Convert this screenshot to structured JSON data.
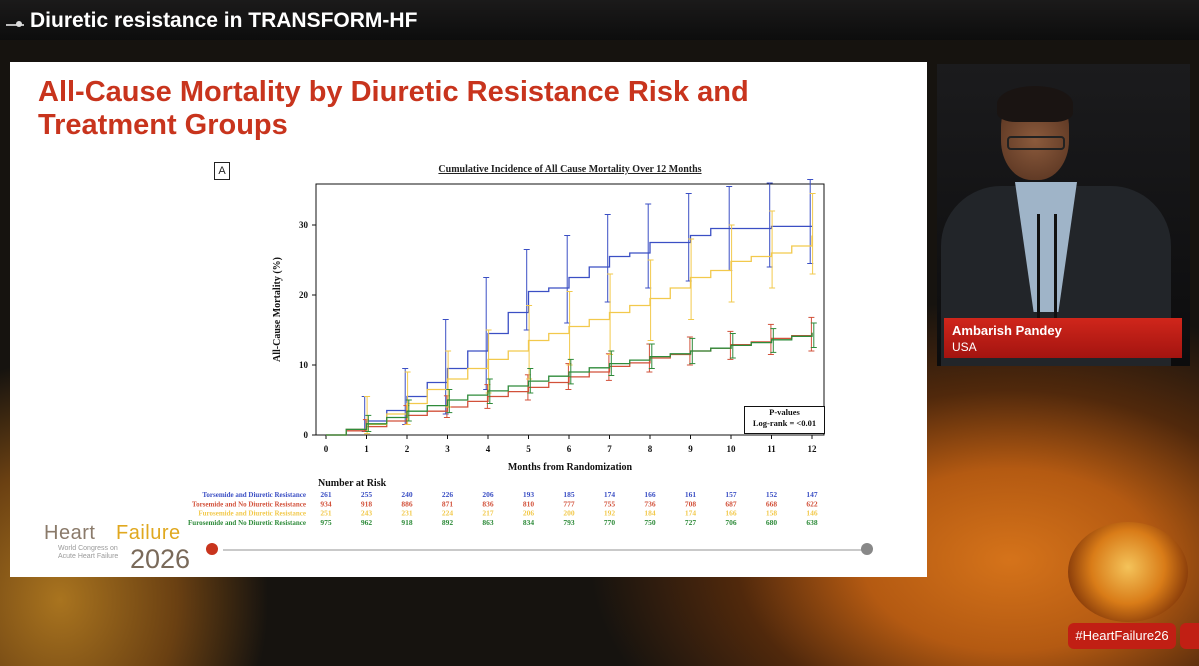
{
  "broadcast": {
    "header_title": "Diuretic resistance in TRANSFORM-HF",
    "speaker_name": "Ambarish Pandey",
    "speaker_country": "USA",
    "hashtag": "#HeartFailure26"
  },
  "slide": {
    "title": "All-Cause Mortality by Diuretic Resistance Risk and Treatment Groups",
    "panel_letter": "A",
    "logo_word1": "Heart",
    "logo_word2": "Failure",
    "logo_sub1": "World Congress on",
    "logo_sub2": "Acute Heart Failure",
    "logo_year": "2026"
  },
  "chart_data": {
    "type": "line",
    "title": "Cumulative Incidence of All Cause Mortality Over 12 Months",
    "xlabel": "Months from Randomization",
    "ylabel": "All-Cause Mortality (%)",
    "xlim": [
      0,
      12
    ],
    "ylim": [
      0,
      35
    ],
    "x_ticks": [
      0,
      1,
      2,
      3,
      4,
      5,
      6,
      7,
      8,
      9,
      10,
      11,
      12
    ],
    "y_ticks": [
      0,
      10,
      20,
      30
    ],
    "pvalue_title": "P-values",
    "pvalue_text": "Log-rank = <0.01",
    "series": [
      {
        "name": "Torsemide and Diuretic Resistance",
        "color": "#3b4fc4",
        "x": [
          0,
          0.5,
          1,
          1.5,
          2,
          2.5,
          3,
          3.5,
          4,
          4.5,
          5,
          5.5,
          6,
          6.5,
          7,
          7.5,
          8,
          8.5,
          9,
          9.5,
          10,
          10.5,
          11,
          11.5,
          12
        ],
        "y": [
          0,
          0.8,
          2,
          3.5,
          5.5,
          7.5,
          9.5,
          12,
          14.5,
          17.5,
          20.5,
          21,
          22.5,
          24,
          25.5,
          26,
          27.5,
          27.5,
          28.5,
          29.5,
          29.5,
          29.5,
          29.8,
          29.8,
          29.8
        ],
        "err_x": [
          1,
          2,
          3,
          4,
          5,
          6,
          7,
          8,
          9,
          10,
          11,
          12
        ],
        "err_low": [
          0.5,
          1.5,
          3,
          6.5,
          15,
          16,
          19,
          21,
          22,
          23.5,
          24,
          24.5
        ],
        "err_high": [
          5.5,
          9.5,
          16.5,
          22.5,
          26.5,
          28.5,
          31.5,
          33,
          34.5,
          35.5,
          36,
          36.5
        ],
        "at_risk": [
          261,
          255,
          240,
          226,
          206,
          193,
          185,
          174,
          166,
          161,
          157,
          152,
          147
        ]
      },
      {
        "name": "Torsemide and No Diuretic Resistance",
        "color": "#d2513a",
        "x": [
          0,
          0.5,
          1,
          1.5,
          2,
          2.5,
          3,
          3.5,
          4,
          4.5,
          5,
          5.5,
          6,
          6.5,
          7,
          7.5,
          8,
          8.5,
          9,
          9.5,
          10,
          10.5,
          11,
          11.5,
          12
        ],
        "y": [
          0,
          0.6,
          1.2,
          2,
          2.8,
          3.4,
          4,
          4.8,
          5.5,
          6.2,
          6.8,
          7.5,
          8.3,
          9,
          9.8,
          10.3,
          11,
          11.5,
          12,
          12.4,
          12.9,
          13.3,
          13.8,
          14.2,
          14.6
        ],
        "err_x": [
          1,
          2,
          3,
          4,
          5,
          6,
          7,
          8,
          9,
          10,
          11,
          12
        ],
        "err_low": [
          0.5,
          1.5,
          2.5,
          3.8,
          5,
          6.5,
          7.8,
          9,
          10,
          10.8,
          11.5,
          12
        ],
        "err_high": [
          2.2,
          4.2,
          5.6,
          7.2,
          8.6,
          10.2,
          11.6,
          13,
          14,
          14.8,
          15.8,
          16.8
        ],
        "at_risk": [
          934,
          918,
          886,
          871,
          836,
          810,
          777,
          755,
          736,
          708,
          687,
          668,
          622
        ]
      },
      {
        "name": "Furosemide and Diuretic Resistance",
        "color": "#f2c94c",
        "x": [
          0,
          0.5,
          1,
          1.5,
          2,
          2.5,
          3,
          3.5,
          4,
          4.5,
          5,
          5.5,
          6,
          6.5,
          7,
          7.5,
          8,
          8.5,
          9,
          9.5,
          10,
          10.5,
          11,
          11.5,
          12
        ],
        "y": [
          0,
          0.8,
          1.5,
          3,
          4.5,
          6.5,
          8,
          9.5,
          10.8,
          12,
          13.5,
          14.5,
          15.5,
          16.5,
          17.5,
          18.5,
          19.5,
          21,
          22.5,
          23.5,
          24.8,
          25.5,
          26,
          27,
          28.5
        ],
        "err_x": [
          1,
          2,
          3,
          4,
          5,
          6,
          7,
          8,
          9,
          10,
          11,
          12
        ],
        "err_low": [
          0.2,
          1.5,
          4,
          6,
          8,
          10,
          11.5,
          13.5,
          16.5,
          19,
          21,
          23
        ],
        "err_high": [
          5.5,
          9,
          12,
          15,
          18.5,
          20.5,
          23,
          25,
          28,
          30,
          32,
          34.5
        ],
        "at_risk": [
          251,
          243,
          231,
          224,
          217,
          206,
          200,
          192,
          184,
          174,
          166,
          158,
          146
        ]
      },
      {
        "name": "Furosemide and No Diuretic Resistance",
        "color": "#2e8b3a",
        "x": [
          0,
          0.5,
          1,
          1.5,
          2,
          2.5,
          3,
          3.5,
          4,
          4.5,
          5,
          5.5,
          6,
          6.5,
          7,
          7.5,
          8,
          8.5,
          9,
          9.5,
          10,
          10.5,
          11,
          11.5,
          12
        ],
        "y": [
          0,
          0.8,
          1.6,
          2.5,
          3.4,
          4.2,
          5,
          5.7,
          6.3,
          7,
          7.7,
          8.4,
          9,
          9.6,
          10.2,
          10.7,
          11.2,
          11.6,
          12,
          12.4,
          12.8,
          13.2,
          13.6,
          14.1,
          14.6
        ],
        "err_x": [
          1,
          2,
          3,
          4,
          5,
          6,
          7,
          8,
          9,
          10,
          11,
          12
        ],
        "err_low": [
          0.5,
          2,
          3.2,
          4.5,
          6,
          7.3,
          8.5,
          9.5,
          10.2,
          11,
          11.8,
          12.5
        ],
        "err_high": [
          2.8,
          5,
          6.5,
          8,
          9.5,
          10.8,
          12,
          13,
          13.8,
          14.5,
          15.2,
          16
        ],
        "at_risk": [
          975,
          962,
          918,
          892,
          863,
          834,
          793,
          770,
          750,
          727,
          706,
          680,
          638
        ]
      }
    ],
    "risk_table_title": "Number at Risk"
  }
}
